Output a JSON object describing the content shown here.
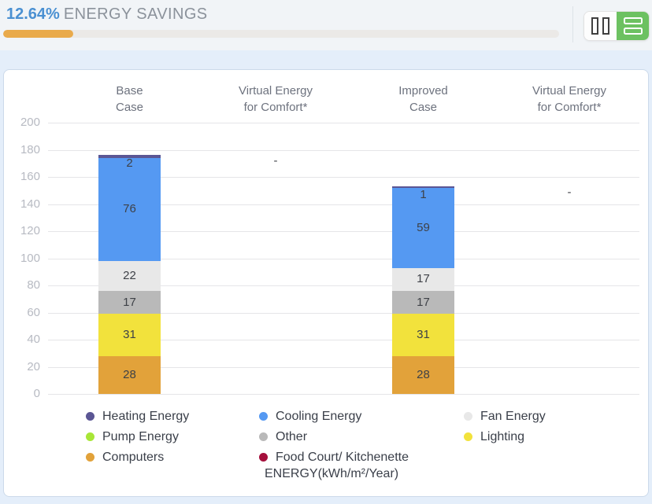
{
  "header": {
    "savings_percent": "12.64%",
    "savings_label": "ENERGY SAVINGS",
    "progress_percent": 12.64,
    "progress_fill_color": "#e9aa4b",
    "percent_color": "#4a90d2"
  },
  "view_toggle": {
    "buttons": [
      {
        "name": "columns-view",
        "active": false
      },
      {
        "name": "rows-view",
        "active": true,
        "active_color": "#6cc161"
      }
    ]
  },
  "chart_data": {
    "type": "bar",
    "stacked": true,
    "grid": true,
    "ylim": [
      0,
      200
    ],
    "ytick_interval": 20,
    "categories": [
      "Base Case",
      "Virtual Energy for Comfort*",
      "Improved Case",
      "Virtual Energy for Comfort*"
    ],
    "category_lines": [
      [
        "Base",
        "Case"
      ],
      [
        "Virtual Energy",
        "for Comfort*"
      ],
      [
        "Improved",
        "Case"
      ],
      [
        "Virtual Energy",
        "for Comfort*"
      ]
    ],
    "empty_value_text": "-",
    "series": [
      {
        "name": "Computers",
        "color": "#e2a23a",
        "values": [
          28,
          null,
          28,
          null
        ]
      },
      {
        "name": "Lighting",
        "color": "#f2e23c",
        "values": [
          31,
          null,
          31,
          null
        ]
      },
      {
        "name": "Other",
        "color": "#b9b9b9",
        "values": [
          17,
          null,
          17,
          null
        ]
      },
      {
        "name": "Fan Energy",
        "color": "#e8e8e8",
        "values": [
          22,
          null,
          17,
          null
        ]
      },
      {
        "name": "Cooling Energy",
        "color": "#5599f2",
        "values": [
          76,
          null,
          59,
          null
        ]
      },
      {
        "name": "Heating Energy",
        "color": "#5b5694",
        "values": [
          2,
          null,
          1,
          null
        ]
      }
    ],
    "column_totals": {
      "base_case": 176,
      "improved_case": 153
    },
    "unit_label": "ENERGY(kWh/m²/Year)",
    "legend_position": "bottom",
    "legend": [
      {
        "lines": [
          "Heating Energy"
        ],
        "color": "#5b5694"
      },
      {
        "lines": [
          "Cooling Energy"
        ],
        "color": "#5599f2"
      },
      {
        "lines": [
          "Fan Energy"
        ],
        "color": "#e8e8e8"
      },
      {
        "lines": [
          "Pump Energy"
        ],
        "color": "#a8e637"
      },
      {
        "lines": [
          "Other"
        ],
        "color": "#b9b9b9"
      },
      {
        "lines": [
          "Lighting"
        ],
        "color": "#f2e23c"
      },
      {
        "lines": [
          "Computers"
        ],
        "color": "#e2a23a"
      },
      {
        "lines": [
          "Food Court/ Kitchenette",
          "ENERGY(kWh/m²/Year)"
        ],
        "color": "#a50f3c"
      }
    ]
  }
}
